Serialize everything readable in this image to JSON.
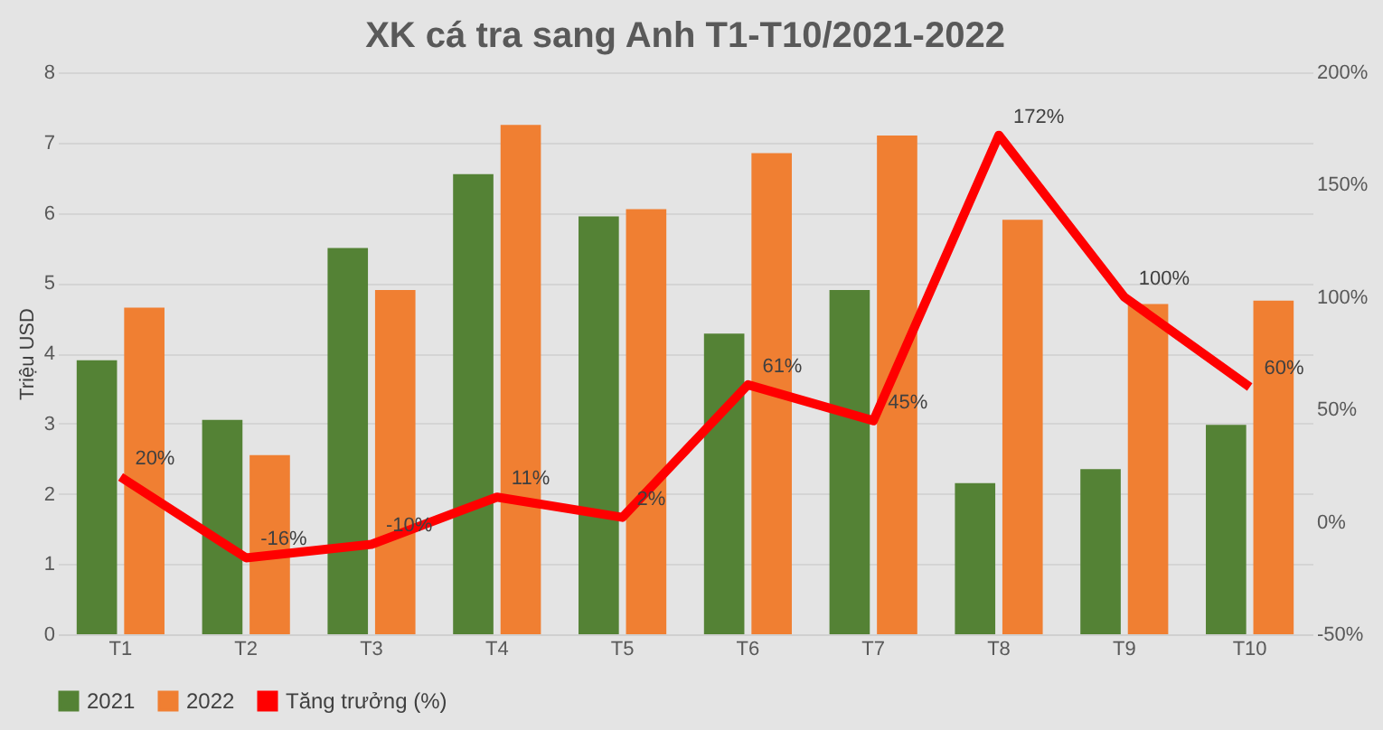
{
  "chart_data": {
    "type": "bar",
    "title": "XK cá tra sang Anh T1-T10/2021-2022",
    "ylabel": "Triệu USD",
    "categories": [
      "T1",
      "T2",
      "T3",
      "T4",
      "T5",
      "T6",
      "T7",
      "T8",
      "T9",
      "T10"
    ],
    "series": [
      {
        "name": "2021",
        "color": "#548235",
        "values": [
          3.9,
          3.05,
          5.5,
          6.55,
          5.95,
          4.28,
          4.9,
          2.15,
          2.35,
          2.98
        ]
      },
      {
        "name": "2022",
        "color": "#f07f32",
        "values": [
          4.65,
          2.55,
          4.9,
          7.25,
          6.05,
          6.85,
          7.1,
          5.9,
          4.7,
          4.75
        ]
      },
      {
        "name": "Tăng trưởng (%)",
        "type": "line",
        "axis": "y2",
        "color": "#ff0000",
        "values": [
          20,
          -16,
          -10,
          11,
          2,
          61,
          45,
          172,
          100,
          60
        ],
        "value_labels": [
          "20%",
          "-16%",
          "-10%",
          "11%",
          "2%",
          "61%",
          "45%",
          "172%",
          "100%",
          "60%"
        ]
      }
    ],
    "ylim": [
      0,
      8
    ],
    "yticks": [
      0,
      1,
      2,
      3,
      4,
      5,
      6,
      7,
      8
    ],
    "y2lim": [
      -50,
      200
    ],
    "y2ticks": [
      {
        "value": -50,
        "label": "-50%"
      },
      {
        "value": 0,
        "label": "0%"
      },
      {
        "value": 50,
        "label": "50%"
      },
      {
        "value": 100,
        "label": "100%"
      },
      {
        "value": 150,
        "label": "150%"
      },
      {
        "value": 200,
        "label": "200%"
      }
    ],
    "grid": "y",
    "legend": "bottom",
    "marker": "none",
    "line_style": "solid"
  }
}
